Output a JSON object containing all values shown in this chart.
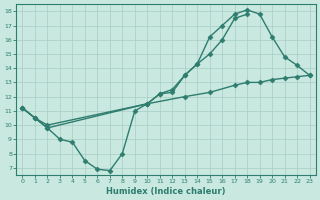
{
  "line1": {
    "x": [
      0,
      1,
      2,
      10,
      11,
      12,
      13,
      14,
      15,
      16,
      17,
      18,
      19,
      20,
      21,
      22,
      23
    ],
    "y": [
      11.2,
      10.5,
      9.8,
      11.5,
      12.2,
      12.5,
      13.5,
      14.3,
      16.2,
      17.0,
      17.8,
      18.1,
      17.8,
      16.2,
      14.8,
      14.2,
      13.5
    ],
    "color": "#2e7d6e",
    "marker": "D",
    "markersize": 2.5,
    "linewidth": 1.0
  },
  "line2": {
    "x": [
      0,
      1,
      2,
      3,
      4,
      5,
      6,
      7,
      8,
      9,
      10,
      11,
      12,
      13,
      14,
      15,
      16,
      17,
      18
    ],
    "y": [
      11.2,
      10.5,
      9.8,
      9.0,
      8.8,
      7.5,
      6.9,
      6.8,
      8.0,
      11.0,
      11.5,
      12.2,
      12.3,
      13.5,
      14.3,
      15.0,
      16.0,
      17.5,
      17.8
    ],
    "color": "#2e7d6e",
    "marker": "D",
    "markersize": 2.5,
    "linewidth": 1.0
  },
  "line3": {
    "x": [
      0,
      1,
      2,
      10,
      13,
      15,
      17,
      18,
      19,
      20,
      21,
      22,
      23
    ],
    "y": [
      11.2,
      10.5,
      10.0,
      11.5,
      12.0,
      12.3,
      12.8,
      13.0,
      13.0,
      13.2,
      13.3,
      13.4,
      13.5
    ],
    "color": "#2e7d6e",
    "marker": "D",
    "markersize": 2.5,
    "linewidth": 1.0
  },
  "xlim": [
    -0.5,
    23.5
  ],
  "ylim": [
    6.5,
    18.5
  ],
  "xticks": [
    0,
    1,
    2,
    3,
    4,
    5,
    6,
    7,
    8,
    9,
    10,
    11,
    12,
    13,
    14,
    15,
    16,
    17,
    18,
    19,
    20,
    21,
    22,
    23
  ],
  "yticks": [
    7,
    8,
    9,
    10,
    11,
    12,
    13,
    14,
    15,
    16,
    17,
    18
  ],
  "xlabel": "Humidex (Indice chaleur)",
  "bg_color": "#c8e8e0",
  "grid_color": "#a8ccc5",
  "line_color": "#2e7d6e",
  "axis_color": "#2e7d6e",
  "tick_color": "#2e7d6e",
  "label_color": "#2e7d6e",
  "figwidth": 3.2,
  "figheight": 2.0,
  "dpi": 100
}
